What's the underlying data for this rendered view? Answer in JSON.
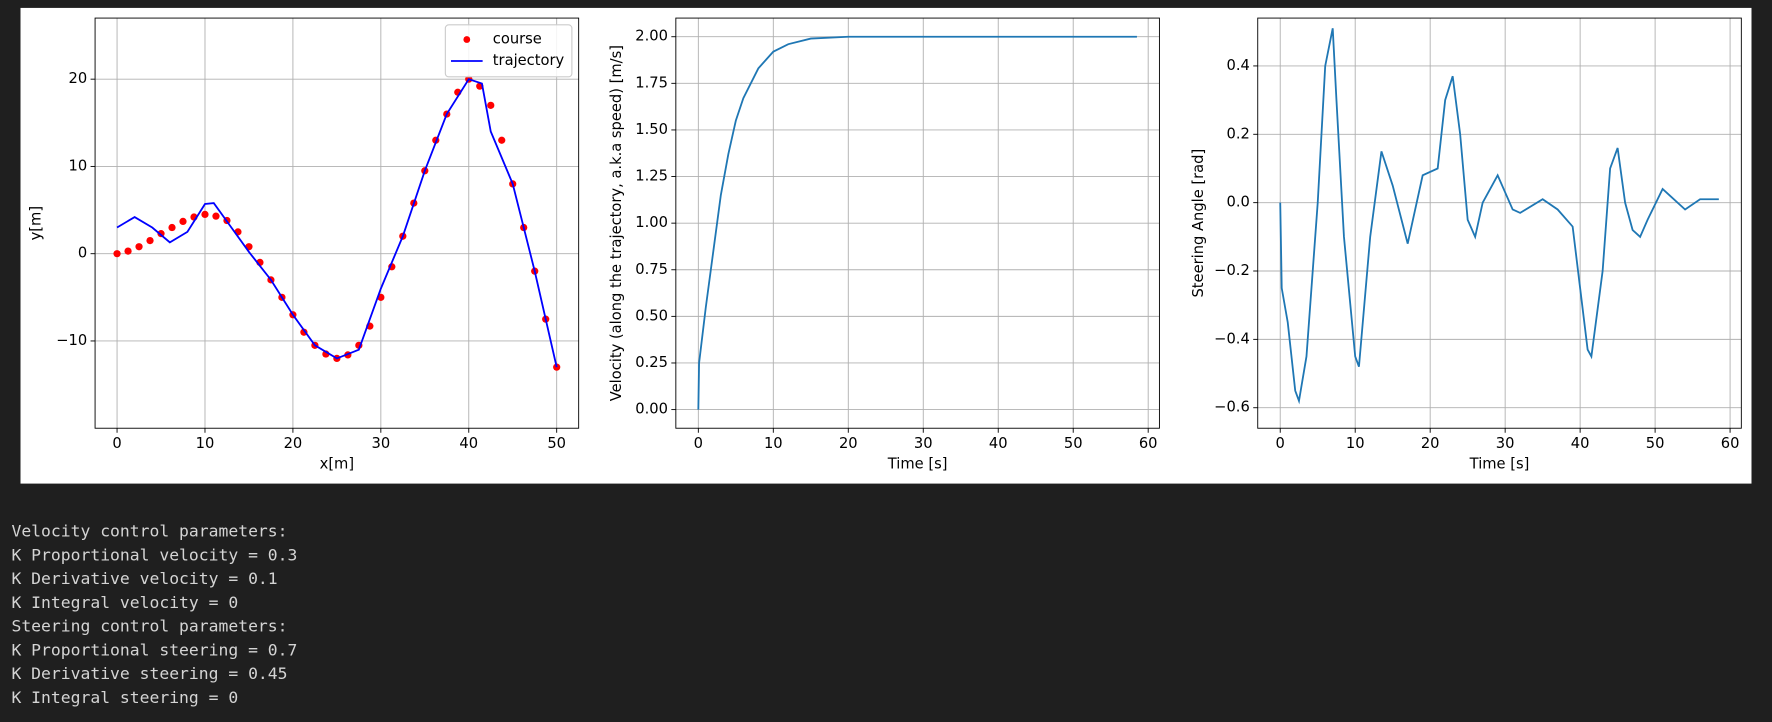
{
  "chart_data": [
    {
      "type": "line",
      "xlabel": "x[m]",
      "ylabel": "y[m]",
      "legend": "upper right",
      "grid": true,
      "xlim": [
        -2.5,
        52.5
      ],
      "ylim": [
        -20,
        27
      ],
      "xticks": [
        0,
        10,
        20,
        30,
        40,
        50
      ],
      "yticks": [
        {
          "value": -10,
          "label": "−10"
        },
        0,
        10,
        20
      ],
      "series": [
        {
          "name": "course",
          "color": "#ff0000",
          "mode": "markers",
          "x": [
            0,
            1.25,
            2.5,
            3.75,
            5,
            6.25,
            7.5,
            8.75,
            10,
            11.25,
            12.5,
            13.75,
            15,
            16.25,
            17.5,
            18.75,
            20,
            21.25,
            22.5,
            23.75,
            25,
            26.25,
            27.5,
            28.75,
            30,
            31.25,
            32.5,
            33.75,
            35,
            36.25,
            37.5,
            38.75,
            40,
            41.25,
            42.5,
            43.75,
            45,
            46.25,
            47.5,
            48.75,
            50
          ],
          "values": [
            0,
            0.3,
            0.8,
            1.5,
            2.3,
            3.0,
            3.7,
            4.2,
            4.5,
            4.3,
            3.8,
            2.5,
            0.8,
            -1.0,
            -3,
            -5,
            -7,
            -9,
            -10.5,
            -11.5,
            -12,
            -11.6,
            -10.5,
            -8.3,
            -5,
            -1.5,
            2,
            5.8,
            9.5,
            13,
            16,
            18.5,
            20,
            19.2,
            17,
            13,
            8,
            3,
            -2,
            -7.5,
            -13
          ]
        },
        {
          "name": "trajectory",
          "color": "#0000ff",
          "mode": "lines",
          "x": [
            0,
            2,
            4,
            6,
            8,
            10,
            11,
            13,
            15,
            17.5,
            20,
            22.5,
            25,
            27.5,
            30,
            32.5,
            35,
            37.5,
            40,
            41.5,
            42.5,
            45,
            47.5,
            50
          ],
          "values": [
            3,
            4.2,
            3,
            1.3,
            2.5,
            5.7,
            5.8,
            3,
            0.2,
            -3,
            -7,
            -10.5,
            -12,
            -11,
            -4,
            2,
            9.5,
            16,
            20,
            19.5,
            14,
            8,
            -2,
            -13
          ]
        }
      ]
    },
    {
      "type": "line",
      "xlabel": "Time [s]",
      "ylabel": "Velocity (along the trajectory, a.k.a speed) [m/s]",
      "grid": true,
      "color": "#1f77b4",
      "xlim": [
        -3,
        61.5
      ],
      "ylim": [
        -0.1,
        2.1
      ],
      "xticks": [
        0,
        10,
        20,
        30,
        40,
        50,
        60
      ],
      "yticks": [
        {
          "value": 0,
          "label": "0.00"
        },
        {
          "value": 0.25,
          "label": "0.25"
        },
        {
          "value": 0.5,
          "label": "0.50"
        },
        {
          "value": 0.75,
          "label": "0.75"
        },
        {
          "value": 1,
          "label": "1.00"
        },
        {
          "value": 1.25,
          "label": "1.25"
        },
        {
          "value": 1.5,
          "label": "1.50"
        },
        {
          "value": 1.75,
          "label": "1.75"
        },
        {
          "value": 2,
          "label": "2.00"
        }
      ],
      "x": [
        0,
        0.1,
        1,
        2,
        3,
        4,
        5,
        6,
        8,
        10,
        12,
        15,
        20,
        30,
        58.5
      ],
      "values": [
        0,
        0.25,
        0.55,
        0.85,
        1.15,
        1.37,
        1.55,
        1.67,
        1.83,
        1.92,
        1.96,
        1.99,
        2.0,
        2.0,
        2.0
      ]
    },
    {
      "type": "line",
      "xlabel": "Time [s]",
      "ylabel": "Steering Angle [rad]",
      "grid": true,
      "color": "#1f77b4",
      "xlim": [
        -3,
        61.5
      ],
      "ylim": [
        -0.66,
        0.54
      ],
      "xticks": [
        0,
        10,
        20,
        30,
        40,
        50,
        60
      ],
      "yticks": [
        {
          "value": -0.6,
          "label": "−0.6"
        },
        {
          "value": -0.4,
          "label": "−0.4"
        },
        {
          "value": -0.2,
          "label": "−0.2"
        },
        {
          "value": 0,
          "label": "0.0"
        },
        {
          "value": 0.2,
          "label": "0.2"
        },
        {
          "value": 0.4,
          "label": "0.4"
        }
      ],
      "x": [
        0,
        0.2,
        1,
        2,
        2.5,
        3.5,
        5,
        6,
        7,
        7.5,
        8.5,
        10,
        10.5,
        12,
        13.5,
        15,
        17,
        19,
        21,
        22,
        23,
        24,
        25,
        26,
        27,
        29,
        31,
        32,
        35,
        37,
        39,
        40,
        41,
        41.5,
        43,
        44,
        45,
        46,
        47,
        48,
        49,
        51,
        52,
        54,
        56,
        58.5
      ],
      "values": [
        0,
        -0.25,
        -0.35,
        -0.55,
        -0.58,
        -0.45,
        0.0,
        0.4,
        0.51,
        0.3,
        -0.1,
        -0.45,
        -0.48,
        -0.1,
        0.15,
        0.05,
        -0.12,
        0.08,
        0.1,
        0.3,
        0.37,
        0.2,
        -0.05,
        -0.1,
        0.0,
        0.08,
        -0.02,
        -0.03,
        0.01,
        -0.02,
        -0.07,
        -0.25,
        -0.43,
        -0.45,
        -0.2,
        0.1,
        0.16,
        0.0,
        -0.08,
        -0.1,
        -0.05,
        0.04,
        0.02,
        -0.02,
        0.01,
        0.01
      ]
    }
  ],
  "output_lines": [
    "Velocity control parameters:",
    "K Proportional velocity = 0.3",
    "K Derivative velocity = 0.1",
    "K Integral velocity = 0",
    "Steering control parameters:",
    "K Proportional steering = 0.7",
    "K Derivative steering = 0.45",
    "K Integral steering = 0"
  ]
}
